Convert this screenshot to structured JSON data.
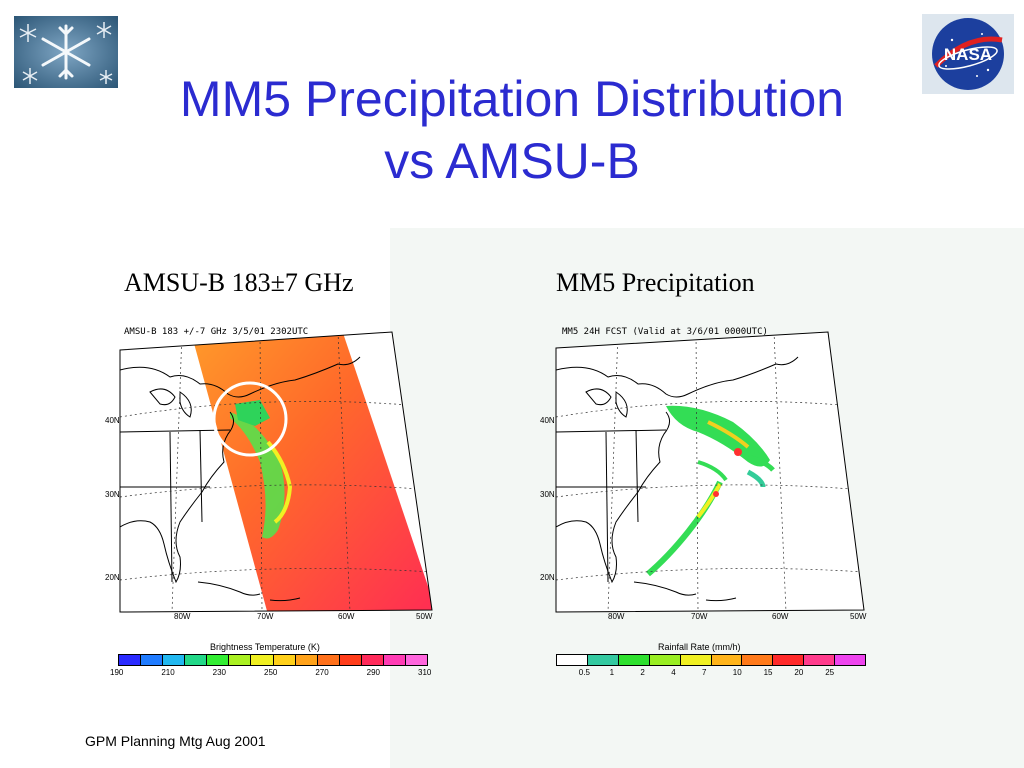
{
  "slide": {
    "title_line1": "MM5 Precipitation Distribution",
    "title_line2": "vs AMSU-B",
    "footer": "GPM Planning Mtg Aug 2001",
    "logo_text": "NASA"
  },
  "left_figure": {
    "caption": "AMSU-B 183±7 GHz",
    "map_title": "AMSU-B 183 +/-7 GHz  3/5/01 2302UTC",
    "lat_labels": [
      "40N",
      "30N",
      "20N"
    ],
    "lon_labels": [
      "80W",
      "70W",
      "60W",
      "50W"
    ],
    "colorbar_title": "Brightness Temperature (K)",
    "colorbar_ticks": [
      "190",
      "210",
      "230",
      "250",
      "270",
      "290",
      "310"
    ],
    "colorbar_colors": [
      "#2a2aff",
      "#1f7bff",
      "#22b8f0",
      "#22d888",
      "#33ee33",
      "#aaf022",
      "#f0f022",
      "#ffd01a",
      "#ffa21a",
      "#ff701a",
      "#ff3d1a",
      "#ff2a5a",
      "#ff3cb4",
      "#ff66dd"
    ]
  },
  "right_figure": {
    "caption": "MM5 Precipitation",
    "map_title": "MM5 24H FCST (Valid at 3/6/01 0000UTC)",
    "lat_labels": [
      "40N",
      "30N",
      "20N"
    ],
    "lon_labels": [
      "80W",
      "70W",
      "60W",
      "50W"
    ],
    "colorbar_title": "Rainfall Rate (mm/h)",
    "colorbar_ticks": [
      "0.5",
      "1",
      "2",
      "4",
      "7",
      "10",
      "15",
      "20",
      "25"
    ],
    "colorbar_colors": [
      "#ffffff",
      "#33c9a0",
      "#2ee02e",
      "#99ee22",
      "#f0f022",
      "#ffb41a",
      "#ff7a1a",
      "#ff2a2a",
      "#ff3c8c",
      "#ee44ee"
    ]
  }
}
